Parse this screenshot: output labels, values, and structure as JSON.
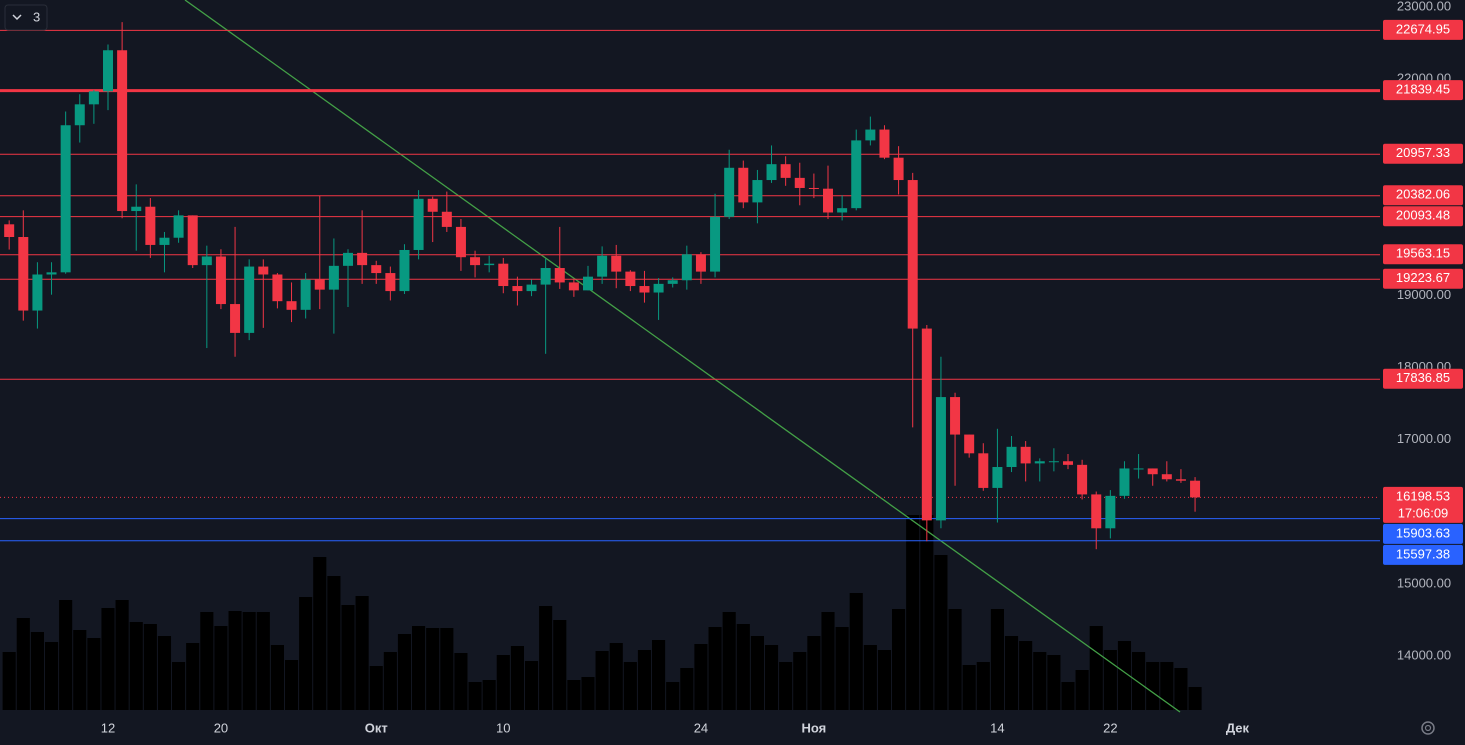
{
  "chart_data": {
    "type": "candlestick",
    "interval_badge": "3",
    "x": [
      0,
      1,
      2,
      3,
      4,
      5,
      6,
      7,
      8,
      9,
      10,
      11,
      12,
      13,
      14,
      15,
      16,
      17,
      18,
      19,
      20,
      21,
      22,
      23,
      24,
      25,
      26,
      27,
      28,
      29,
      30,
      31,
      32,
      33,
      34,
      35,
      36,
      37,
      38,
      39,
      40,
      41,
      42,
      43,
      44,
      45,
      46,
      47,
      48,
      49,
      50,
      51,
      52,
      53,
      54,
      55,
      56,
      57,
      58,
      59,
      60,
      61,
      62,
      63,
      64,
      65,
      66,
      67,
      68,
      69,
      70,
      71,
      72,
      73,
      74,
      75,
      76,
      77,
      78,
      79,
      80,
      81,
      82,
      83,
      84
    ],
    "open": [
      19986,
      19810,
      18790,
      19290,
      19320,
      21360,
      21650,
      21830,
      22400,
      20170,
      20230,
      19700,
      19800,
      20110,
      19420,
      19540,
      18880,
      18480,
      19400,
      19290,
      18920,
      18800,
      19220,
      19080,
      19410,
      19590,
      19420,
      19310,
      19060,
      19630,
      20340,
      20160,
      19950,
      19530,
      19420,
      19440,
      19130,
      19060,
      19150,
      19380,
      19180,
      19070,
      19260,
      19550,
      19330,
      19130,
      19040,
      19160,
      19210,
      19570,
      19330,
      20090,
      20770,
      20290,
      20600,
      20820,
      20630,
      20490,
      20480,
      20150,
      20210,
      21150,
      21300,
      20910,
      20600,
      18540,
      15880,
      17590,
      17070,
      16810,
      16330,
      16620,
      16900,
      16670,
      16700,
      16700,
      16650,
      16240,
      15770,
      16220,
      16600,
      16600,
      16520,
      16450,
      16430
    ],
    "high": [
      20041,
      20180,
      19460,
      19460,
      21550,
      21790,
      21850,
      22480,
      22790,
      20540,
      20350,
      19880,
      20180,
      20110,
      19690,
      19640,
      19950,
      19500,
      19500,
      19310,
      19180,
      19310,
      20380,
      19790,
      19640,
      20180,
      19480,
      19400,
      19710,
      20460,
      20370,
      20440,
      20060,
      19620,
      19550,
      19520,
      19260,
      19220,
      19510,
      19950,
      19220,
      19410,
      19680,
      19700,
      19350,
      19340,
      19240,
      19250,
      19690,
      19600,
      20410,
      21020,
      20870,
      20740,
      21080,
      20930,
      20840,
      20690,
      20800,
      20390,
      21300,
      21480,
      21360,
      21070,
      20700,
      18590,
      18150,
      17650,
      17070,
      16950,
      17150,
      17050,
      16980,
      16740,
      16880,
      16800,
      16720,
      16280,
      16300,
      16700,
      16800,
      16600,
      16700,
      16590,
      16480
    ],
    "low": [
      19636,
      18650,
      18540,
      19010,
      19300,
      21120,
      21380,
      21570,
      20070,
      19620,
      19520,
      19320,
      19730,
      19380,
      18270,
      18810,
      18150,
      18380,
      18550,
      18820,
      18630,
      18680,
      18810,
      18470,
      18840,
      19160,
      19160,
      18930,
      19020,
      19500,
      19740,
      19880,
      19340,
      19250,
      19320,
      19030,
      18860,
      18990,
      18190,
      19090,
      18980,
      19070,
      19160,
      19100,
      19060,
      18900,
      18660,
      19110,
      19080,
      19160,
      19250,
      20060,
      20210,
      20000,
      20560,
      20520,
      20250,
      20350,
      20060,
      20040,
      20180,
      21080,
      20890,
      20400,
      17170,
      15590,
      15770,
      16360,
      16750,
      16290,
      15850,
      16550,
      16420,
      16420,
      16560,
      16590,
      16170,
      15480,
      15630,
      16180,
      16460,
      16360,
      16420,
      16400,
      16000
    ],
    "close": [
      19810,
      18790,
      19290,
      19320,
      21360,
      21650,
      21830,
      22400,
      20170,
      20230,
      19700,
      19800,
      20110,
      19420,
      19540,
      18880,
      18480,
      19400,
      19290,
      18920,
      18800,
      19220,
      19080,
      19410,
      19590,
      19420,
      19310,
      19060,
      19630,
      20340,
      20160,
      19950,
      19530,
      19420,
      19440,
      19130,
      19060,
      19150,
      19380,
      19180,
      19070,
      19260,
      19550,
      19330,
      19130,
      19040,
      19160,
      19210,
      19570,
      19330,
      20090,
      20770,
      20290,
      20600,
      20820,
      20630,
      20490,
      20480,
      20150,
      20210,
      21150,
      21300,
      20910,
      20600,
      18540,
      15880,
      17590,
      17070,
      16810,
      16330,
      16620,
      16900,
      16670,
      16700,
      16700,
      16650,
      16240,
      15770,
      16220,
      16600,
      16600,
      16520,
      16450,
      16430,
      16198.53
    ],
    "volume": [
      58,
      92,
      78,
      68,
      110,
      80,
      72,
      102,
      110,
      88,
      86,
      74,
      48,
      67,
      98,
      84,
      99,
      98,
      98,
      65,
      50,
      113,
      153,
      134,
      105,
      114,
      44,
      58,
      76,
      84,
      82,
      82,
      57,
      28,
      30,
      55,
      64,
      49,
      104,
      90,
      30,
      33,
      59,
      67,
      48,
      60,
      70,
      28,
      42,
      66,
      83,
      98,
      86,
      74,
      65,
      48,
      58,
      74,
      98,
      83,
      117,
      65,
      60,
      101,
      195,
      195,
      155,
      101,
      45,
      48,
      101,
      74,
      69,
      58,
      55,
      28,
      40,
      84,
      60,
      69,
      58,
      48,
      48,
      42,
      23
    ],
    "up_color": "#089981",
    "down_color": "#f23645",
    "volume_color": "#000000",
    "xlim": [
      -0.65,
      97.1
    ],
    "xticks": [
      {
        "value": 7,
        "label": "12"
      },
      {
        "value": 15,
        "label": "20"
      },
      {
        "value": 26,
        "label": "Окт"
      },
      {
        "value": 35,
        "label": "10"
      },
      {
        "value": 49,
        "label": "24"
      },
      {
        "value": 57,
        "label": "Ноя"
      },
      {
        "value": 70,
        "label": "14"
      },
      {
        "value": 78,
        "label": "22"
      },
      {
        "value": 87,
        "label": "Дек"
      }
    ],
    "ylim": [
      13250,
      23097
    ],
    "yticks": [
      {
        "value": 23000,
        "label": "23000.00"
      },
      {
        "value": 22000,
        "label": "22000.00"
      },
      {
        "value": 19000,
        "label": "19000.00"
      },
      {
        "value": 18000,
        "label": "18000.00"
      },
      {
        "value": 17000,
        "label": "17000.00"
      },
      {
        "value": 15000,
        "label": "15000.00"
      },
      {
        "value": 14000,
        "label": "14000.00"
      }
    ],
    "levels": [
      {
        "value": 22674.95,
        "color": "#f23645",
        "width": 1
      },
      {
        "value": 21839.45,
        "color": "#f23645",
        "width": 3
      },
      {
        "value": 20957.33,
        "color": "#f23645",
        "width": 1
      },
      {
        "value": 20382.06,
        "color": "#f23645",
        "width": 1
      },
      {
        "value": 20093.48,
        "color": "#f23645",
        "width": 1
      },
      {
        "value": 19563.15,
        "color": "#f23645",
        "width": 1
      },
      {
        "value": 19223.67,
        "color": "#f23645",
        "width": 1
      },
      {
        "value": 17836.85,
        "color": "#f23645",
        "width": 1
      },
      {
        "value": 15903.63,
        "color": "#2962ff",
        "width": 1
      },
      {
        "value": 15597.38,
        "color": "#2962ff",
        "width": 1
      }
    ],
    "current_price": {
      "value": 16198.53,
      "countdown": "17:06:09",
      "color": "#f23645"
    }
  }
}
